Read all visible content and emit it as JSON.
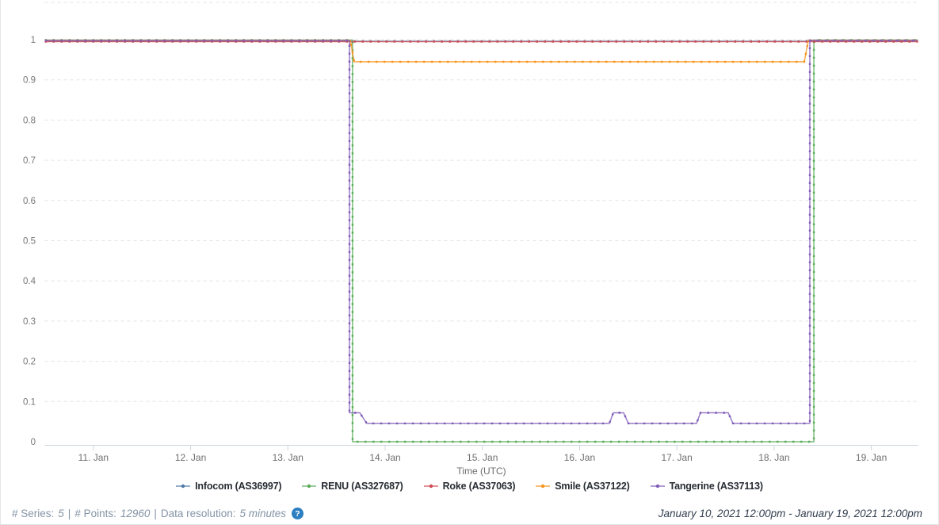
{
  "chart_data": {
    "type": "line",
    "title": "",
    "xlabel": "Time (UTC)",
    "ylabel": "",
    "x_unit": "day of January 2021 (UTC)",
    "x_range": [
      10.5,
      19.48
    ],
    "y_range": [
      0,
      1
    ],
    "grid": "dashed horizontal",
    "legend_position": "bottom-center",
    "y_ticks": [
      {
        "value": 1.0,
        "label": "1"
      },
      {
        "value": 0.9,
        "label": "0.9"
      },
      {
        "value": 0.8,
        "label": "0.8"
      },
      {
        "value": 0.7,
        "label": "0.7"
      },
      {
        "value": 0.6,
        "label": "0.6"
      },
      {
        "value": 0.5,
        "label": "0.5"
      },
      {
        "value": 0.4,
        "label": "0.4"
      },
      {
        "value": 0.3,
        "label": "0.3"
      },
      {
        "value": 0.2,
        "label": "0.2"
      },
      {
        "value": 0.1,
        "label": "0.1"
      },
      {
        "value": 0.0,
        "label": "0"
      }
    ],
    "x_ticks": [
      {
        "value": 11,
        "label": "11. Jan"
      },
      {
        "value": 12,
        "label": "12. Jan"
      },
      {
        "value": 13,
        "label": "13. Jan"
      },
      {
        "value": 14,
        "label": "14. Jan"
      },
      {
        "value": 15,
        "label": "15. Jan"
      },
      {
        "value": 16,
        "label": "16. Jan"
      },
      {
        "value": 17,
        "label": "17. Jan"
      },
      {
        "value": 18,
        "label": "18. Jan"
      },
      {
        "value": 19,
        "label": "19. Jan"
      }
    ],
    "series": [
      {
        "name": "Infocom (AS36997)",
        "color": "#4e79a7",
        "points": [
          [
            10.5,
            0.996
          ],
          [
            19.48,
            0.996
          ]
        ]
      },
      {
        "name": "RENU (AS327687)",
        "color": "#5aab5a",
        "points": [
          [
            10.5,
            0.999
          ],
          [
            13.665,
            0.999
          ],
          [
            13.665,
            0.0
          ],
          [
            18.409,
            0.0
          ],
          [
            18.409,
            0.999
          ],
          [
            19.48,
            0.999
          ]
        ]
      },
      {
        "name": "Roke (AS37063)",
        "color": "#cf4a55",
        "points": [
          [
            10.5,
            0.995
          ],
          [
            19.48,
            0.995
          ]
        ]
      },
      {
        "name": "Smile (AS37122)",
        "color": "#f7941e",
        "points": [
          [
            10.5,
            0.9985
          ],
          [
            13.641,
            0.9985
          ],
          [
            13.682,
            0.945
          ],
          [
            18.311,
            0.945
          ],
          [
            18.352,
            0.9985
          ],
          [
            19.48,
            0.9985
          ]
        ]
      },
      {
        "name": "Tangerine (AS37113)",
        "color": "#7e5cb8",
        "points": [
          [
            10.5,
            0.998
          ],
          [
            13.633,
            0.998
          ],
          [
            13.633,
            0.072
          ],
          [
            13.739,
            0.072
          ],
          [
            13.812,
            0.0455
          ],
          [
            16.306,
            0.0455
          ],
          [
            16.347,
            0.072
          ],
          [
            16.453,
            0.072
          ],
          [
            16.502,
            0.0455
          ],
          [
            17.202,
            0.0455
          ],
          [
            17.243,
            0.072
          ],
          [
            17.528,
            0.072
          ],
          [
            17.577,
            0.0455
          ],
          [
            18.368,
            0.0455
          ],
          [
            18.368,
            0.998
          ],
          [
            19.48,
            0.998
          ]
        ]
      }
    ]
  },
  "stats": {
    "series_label": "# Series:",
    "series_value": "5",
    "separator1": "|",
    "points_label": "# Points:",
    "points_value": "12960",
    "separator2": "|",
    "resolution_label": "Data resolution:",
    "resolution_value": "5 minutes",
    "help_icon": "?"
  },
  "date_range": "January 10, 2021 12:00pm - January 19, 2021 12:00pm"
}
